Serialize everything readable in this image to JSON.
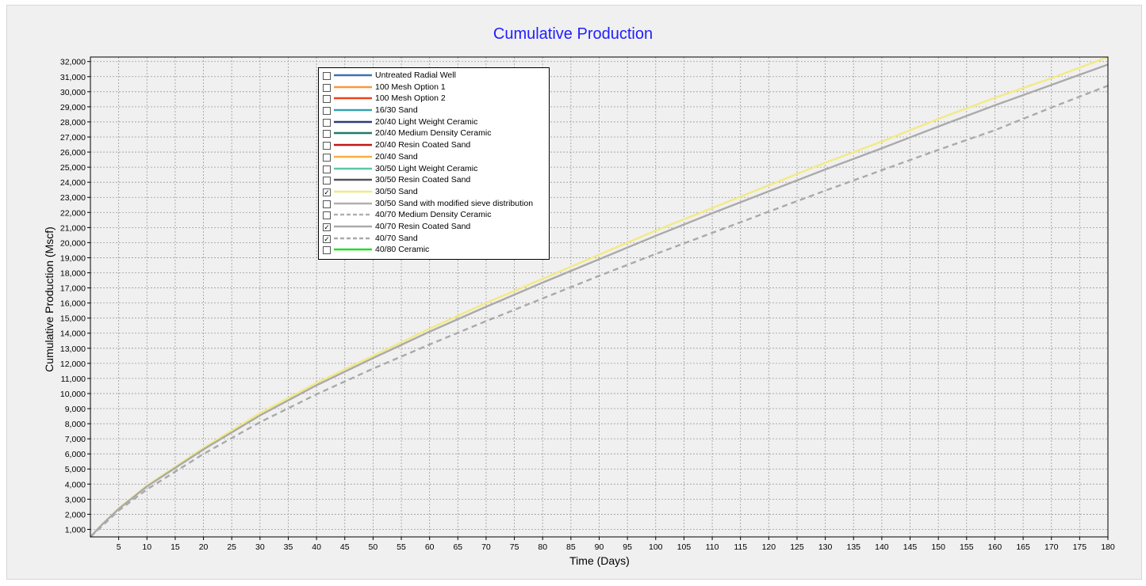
{
  "chart_data": {
    "type": "line",
    "title": "Cumulative Production",
    "xlabel": "Time (Days)",
    "ylabel": "Cumulative  Production (Mscf)",
    "xlim": [
      0,
      180
    ],
    "ylim": [
      500,
      32300
    ],
    "x_ticks": [
      5,
      10,
      15,
      20,
      25,
      30,
      35,
      40,
      45,
      50,
      55,
      60,
      65,
      70,
      75,
      80,
      85,
      90,
      95,
      100,
      105,
      110,
      115,
      120,
      125,
      130,
      135,
      140,
      145,
      150,
      155,
      160,
      165,
      170,
      175,
      180
    ],
    "y_ticks": [
      "1,000",
      "2,000",
      "3,000",
      "4,000",
      "5,000",
      "6,000",
      "7,000",
      "8,000",
      "9,000",
      "10,000",
      "11,000",
      "12,000",
      "13,000",
      "14,000",
      "15,000",
      "16,000",
      "17,000",
      "18,000",
      "19,000",
      "20,000",
      "21,000",
      "22,000",
      "23,000",
      "24,000",
      "25,000",
      "26,000",
      "27,000",
      "28,000",
      "29,000",
      "30,000",
      "31,000",
      "32,000"
    ],
    "grid": true,
    "legend_position": "top-left",
    "legend": [
      {
        "name": "Untreated Radial Well",
        "color": "#3e6fc0",
        "dashed": false,
        "checked": false
      },
      {
        "name": "100 Mesh Option 1",
        "color": "#f79a3a",
        "dashed": false,
        "checked": false
      },
      {
        "name": "100 Mesh Option 2",
        "color": "#e8431f",
        "dashed": false,
        "checked": false
      },
      {
        "name": "16/30 Sand",
        "color": "#3aa0b0",
        "dashed": false,
        "checked": false
      },
      {
        "name": "20/40 Light Weight Ceramic",
        "color": "#2b3a7a",
        "dashed": false,
        "checked": false
      },
      {
        "name": "20/40 Medium Density Ceramic",
        "color": "#1f7a6a",
        "dashed": false,
        "checked": false
      },
      {
        "name": "20/40 Resin Coated Sand",
        "color": "#c01818",
        "dashed": false,
        "checked": false
      },
      {
        "name": "20/40 Sand",
        "color": "#f5b03e",
        "dashed": false,
        "checked": false
      },
      {
        "name": "30/50 Light Weight Ceramic",
        "color": "#5dc7a3",
        "dashed": false,
        "checked": false
      },
      {
        "name": "30/50 Resin Coated Sand",
        "color": "#555555",
        "dashed": false,
        "checked": false
      },
      {
        "name": "30/50 Sand",
        "color": "#f2ea84",
        "dashed": false,
        "checked": true
      },
      {
        "name": "30/50 Sand with modified sieve distribution",
        "color": "#b0b0b0",
        "dashed": false,
        "checked": false
      },
      {
        "name": "40/70 Medium Density Ceramic",
        "color": "#b0b0b0",
        "dashed": true,
        "checked": false
      },
      {
        "name": "40/70 Resin Coated Sand",
        "color": "#aaaaaa",
        "dashed": false,
        "checked": true
      },
      {
        "name": "40/70 Sand",
        "color": "#aaaaaa",
        "dashed": true,
        "checked": true
      },
      {
        "name": "40/80 Ceramic",
        "color": "#22dd22",
        "dashed": false,
        "checked": false
      }
    ],
    "series": [
      {
        "name": "30/50 Sand",
        "color": "#f2ea84",
        "dashed": false,
        "x": [
          0,
          1,
          2,
          5,
          10,
          20,
          30,
          40,
          50,
          60,
          70,
          80,
          90,
          100,
          110,
          120,
          130,
          140,
          150,
          160,
          170,
          180
        ],
        "values": [
          500,
          900,
          1300,
          2400,
          3900,
          6400,
          8700,
          10700,
          12500,
          14300,
          16000,
          17600,
          19200,
          20800,
          22300,
          23800,
          25300,
          26700,
          28200,
          29600,
          30900,
          32300
        ]
      },
      {
        "name": "40/70 Resin Coated Sand",
        "color": "#aaaaaa",
        "dashed": false,
        "x": [
          0,
          1,
          2,
          5,
          10,
          20,
          30,
          40,
          50,
          60,
          70,
          80,
          90,
          100,
          110,
          120,
          130,
          140,
          150,
          160,
          170,
          180
        ],
        "values": [
          500,
          900,
          1300,
          2350,
          3850,
          6300,
          8550,
          10550,
          12350,
          14100,
          15750,
          17350,
          18900,
          20450,
          21950,
          23400,
          24850,
          26250,
          27700,
          29100,
          30450,
          31800
        ]
      },
      {
        "name": "40/70 Sand",
        "color": "#aaaaaa",
        "dashed": true,
        "x": [
          0,
          1,
          2,
          5,
          10,
          20,
          30,
          40,
          50,
          60,
          70,
          80,
          90,
          100,
          110,
          120,
          130,
          140,
          150,
          160,
          170,
          180
        ],
        "values": [
          500,
          850,
          1200,
          2250,
          3650,
          6000,
          8100,
          9950,
          11650,
          13250,
          14800,
          16300,
          17800,
          19250,
          20650,
          22050,
          23450,
          24800,
          26150,
          27450,
          28950,
          30400
        ]
      }
    ]
  }
}
